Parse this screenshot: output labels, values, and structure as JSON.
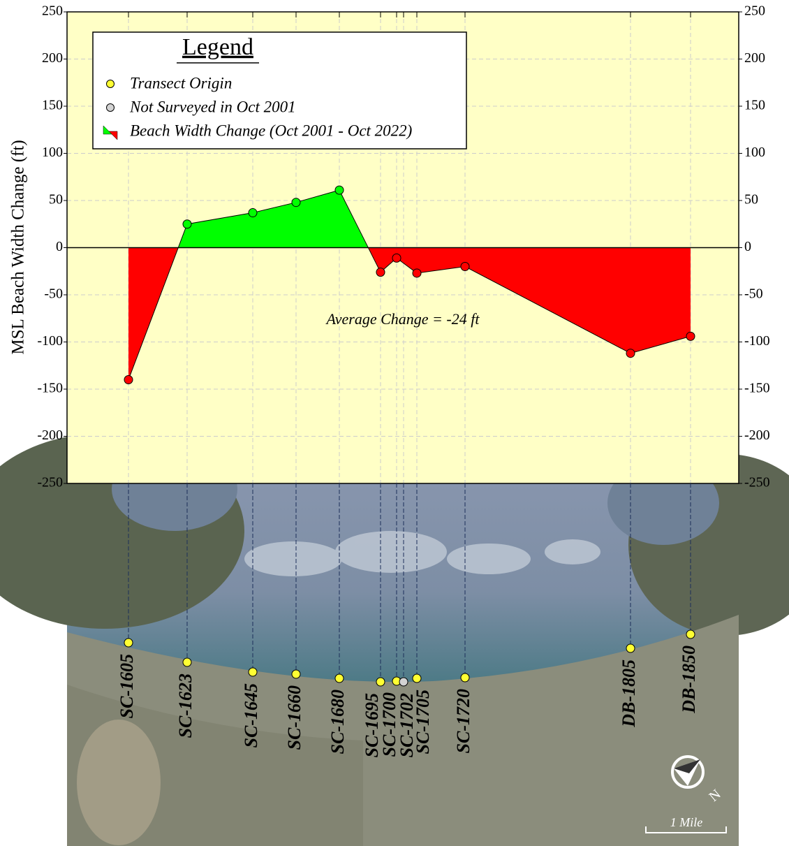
{
  "chart_data": {
    "type": "area",
    "y_label": "MSL Beach Width Change (ft)",
    "categories": [
      "SC-1605",
      "SC-1623",
      "SC-1645",
      "SC-1660",
      "SC-1680",
      "SC-1695",
      "SC-1700",
      "SC-1702",
      "SC-1705",
      "SC-1720",
      "DB-1805",
      "DB-1850"
    ],
    "values": [
      -140,
      25,
      37,
      48,
      61,
      -26,
      -11,
      null,
      -27,
      -20,
      -112,
      -94
    ],
    "ylim": [
      -250,
      250
    ],
    "yticks": [
      -250,
      -200,
      -150,
      -100,
      -50,
      0,
      50,
      100,
      150,
      200,
      250
    ],
    "grid": true,
    "fill_positive": "#00ff00",
    "fill_negative": "#ff0000",
    "background": "#ffffc6",
    "annotation": "Average Change = -24 ft",
    "legend": {
      "title": "Legend",
      "entries": [
        {
          "name": "Transect Origin",
          "color": "#ffff33"
        },
        {
          "name": "Not Surveyed in Oct 2001",
          "color": "#d3d3d3"
        },
        {
          "name": "Beach Width Change (Oct 2001 - Oct 2022)",
          "color": "#ff0000"
        }
      ]
    },
    "map": {
      "scale_label": "1 Mile",
      "north_label": "N"
    }
  }
}
